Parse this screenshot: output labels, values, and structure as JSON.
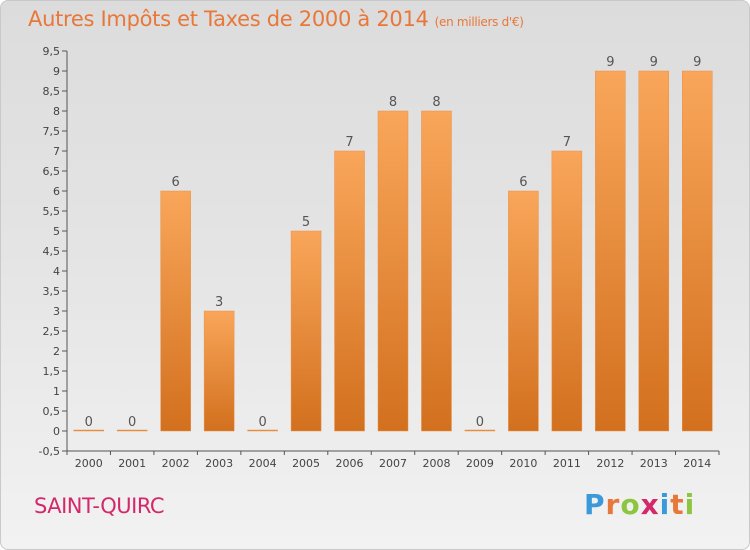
{
  "title": {
    "main": "Autres Impôts et Taxes de 2000 à 2014",
    "unit": "(en milliers d'€)"
  },
  "commune": "SAINT-QUIRC",
  "brand": {
    "letters": [
      "P",
      "r",
      "o",
      "x",
      "i",
      "t",
      "i"
    ],
    "colors": [
      "#3a9ad9",
      "#e8773a",
      "#8cc63f",
      "#d4286b",
      "#3a9ad9",
      "#e8773a",
      "#8cc63f"
    ]
  },
  "colors": {
    "bar_top": "#f9a65a",
    "bar_bottom": "#d2701e",
    "title": "#e8773a",
    "commune": "#d4286b"
  },
  "chart_data": {
    "type": "bar",
    "title": "Autres Impôts et Taxes de 2000 à 2014",
    "ylabel": "",
    "xlabel": "",
    "categories": [
      "2000",
      "2001",
      "2002",
      "2003",
      "2004",
      "2005",
      "2006",
      "2007",
      "2008",
      "2009",
      "2010",
      "2011",
      "2012",
      "2013",
      "2014"
    ],
    "values": [
      0,
      0,
      6,
      3,
      0,
      5,
      7,
      8,
      8,
      0,
      6,
      7,
      9,
      9,
      9
    ],
    "ylim": [
      -0.5,
      9.5
    ],
    "yticks": [
      "-0,5",
      "0",
      "0,5",
      "1",
      "1,5",
      "2",
      "2,5",
      "3",
      "3,5",
      "4",
      "4,5",
      "5",
      "5,5",
      "6",
      "6,5",
      "7",
      "7,5",
      "8",
      "8,5",
      "9",
      "9,5"
    ],
    "grid": false,
    "legend": "none"
  }
}
